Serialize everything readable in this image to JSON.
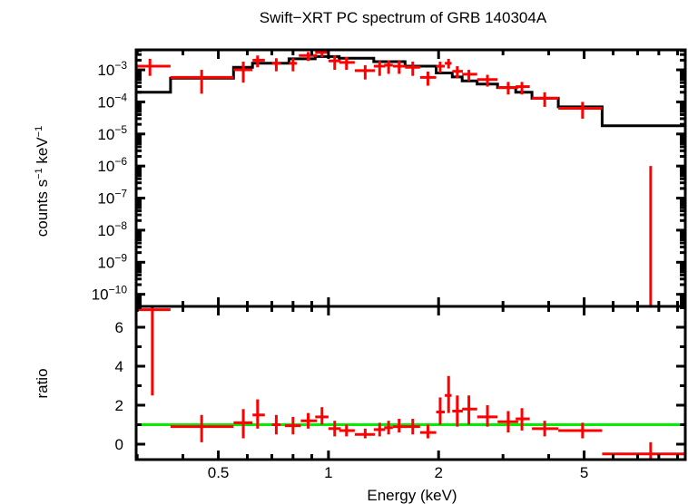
{
  "chart_data": [
    {
      "panel": "spectrum",
      "type": "scatter",
      "title": "Swift−XRT PC spectrum of GRB 140304A",
      "xlabel": "",
      "ylabel": "counts s⁻¹ keV⁻¹",
      "xscale": "log",
      "yscale": "log",
      "xlim": [
        0.298,
        9.45
      ],
      "ylim": [
        4.2e-11,
        0.0042
      ],
      "ytick_exponents": [
        -3,
        -4,
        -5,
        -6,
        -7,
        -8,
        -9,
        -10
      ],
      "colors": {
        "data": "#ff0000",
        "model": "#000000"
      },
      "series": [
        {
          "name": "data",
          "points": [
            {
              "x": 0.325,
              "xlo": 0.298,
              "xhi": 0.37,
              "y": 0.0013,
              "ylo": 0.00065,
              "yhi": 0.0022
            },
            {
              "x": 0.45,
              "xlo": 0.37,
              "xhi": 0.55,
              "y": 0.00058,
              "ylo": 0.00018,
              "yhi": 0.001
            },
            {
              "x": 0.585,
              "xlo": 0.55,
              "xhi": 0.62,
              "y": 0.001,
              "ylo": 0.0004,
              "yhi": 0.0018
            },
            {
              "x": 0.64,
              "xlo": 0.62,
              "xhi": 0.67,
              "y": 0.002,
              "ylo": 0.0012,
              "yhi": 0.0028
            },
            {
              "x": 0.72,
              "xlo": 0.7,
              "xhi": 0.74,
              "y": 0.0016,
              "ylo": 0.0009,
              "yhi": 0.0023
            },
            {
              "x": 0.8,
              "xlo": 0.78,
              "xhi": 0.82,
              "y": 0.0016,
              "ylo": 0.0009,
              "yhi": 0.0023
            },
            {
              "x": 0.88,
              "xlo": 0.83,
              "xhi": 0.93,
              "y": 0.0028,
              "ylo": 0.0019,
              "yhi": 0.0036
            },
            {
              "x": 0.96,
              "xlo": 0.92,
              "xhi": 1.0,
              "y": 0.0035,
              "ylo": 0.0025,
              "yhi": 0.0042
            },
            {
              "x": 1.04,
              "xlo": 1.0,
              "xhi": 1.08,
              "y": 0.0019,
              "ylo": 0.001,
              "yhi": 0.0028
            },
            {
              "x": 1.12,
              "xlo": 1.07,
              "xhi": 1.18,
              "y": 0.0017,
              "ylo": 0.001,
              "yhi": 0.0025
            },
            {
              "x": 1.26,
              "xlo": 1.18,
              "xhi": 1.34,
              "y": 0.00095,
              "ylo": 0.0005,
              "yhi": 0.0014
            },
            {
              "x": 1.38,
              "xlo": 1.33,
              "xhi": 1.43,
              "y": 0.0013,
              "ylo": 0.00065,
              "yhi": 0.0019
            },
            {
              "x": 1.46,
              "xlo": 1.42,
              "xhi": 1.5,
              "y": 0.0014,
              "ylo": 0.00075,
              "yhi": 0.002
            },
            {
              "x": 1.56,
              "xlo": 1.5,
              "xhi": 1.63,
              "y": 0.0013,
              "ylo": 0.00075,
              "yhi": 0.0019
            },
            {
              "x": 1.7,
              "xlo": 1.62,
              "xhi": 1.78,
              "y": 0.0012,
              "ylo": 0.00065,
              "yhi": 0.0018
            },
            {
              "x": 1.87,
              "xlo": 1.78,
              "xhi": 1.97,
              "y": 0.00058,
              "ylo": 0.00032,
              "yhi": 0.00088
            },
            {
              "x": 2.02,
              "xlo": 1.97,
              "xhi": 2.08,
              "y": 0.0013,
              "ylo": 0.0008,
              "yhi": 0.0018
            },
            {
              "x": 2.13,
              "xlo": 2.08,
              "xhi": 2.17,
              "y": 0.0016,
              "ylo": 0.0011,
              "yhi": 0.0022
            },
            {
              "x": 2.25,
              "xlo": 2.18,
              "xhi": 2.33,
              "y": 0.0009,
              "ylo": 0.00055,
              "yhi": 0.0013
            },
            {
              "x": 2.42,
              "xlo": 2.32,
              "xhi": 2.55,
              "y": 0.00073,
              "ylo": 0.00045,
              "yhi": 0.001
            },
            {
              "x": 2.72,
              "xlo": 2.55,
              "xhi": 2.9,
              "y": 0.0005,
              "ylo": 0.0003,
              "yhi": 0.0007
            },
            {
              "x": 3.1,
              "xlo": 2.9,
              "xhi": 3.3,
              "y": 0.00028,
              "ylo": 0.00017,
              "yhi": 0.00042
            },
            {
              "x": 3.38,
              "xlo": 3.25,
              "xhi": 3.55,
              "y": 0.0003,
              "ylo": 0.00017,
              "yhi": 0.00042
            },
            {
              "x": 3.9,
              "xlo": 3.6,
              "xhi": 4.25,
              "y": 0.00013,
              "ylo": 7e-05,
              "yhi": 0.0002
            },
            {
              "x": 4.95,
              "xlo": 4.25,
              "xhi": 5.6,
              "y": 6.3e-05,
              "ylo": 3e-05,
              "yhi": 0.0001
            },
            {
              "x": 7.6,
              "xlo": null,
              "xhi": null,
              "y": null,
              "ylo": 4.2e-11,
              "yhi": 1e-06
            }
          ]
        },
        {
          "name": "model",
          "step_edges": [
            0.298,
            0.37,
            0.55,
            0.62,
            0.78,
            0.92,
            1.07,
            1.33,
            1.62,
            1.97,
            2.18,
            2.32,
            2.55,
            2.9,
            3.25,
            3.6,
            4.25,
            5.6,
            9.45
          ],
          "step_values": [
            0.0002,
            0.00055,
            0.0012,
            0.0016,
            0.0022,
            0.0026,
            0.0023,
            0.0018,
            0.0013,
            0.0008,
            0.0006,
            0.00045,
            0.00036,
            0.00028,
            0.0002,
            0.00013,
            7e-05,
            1.8e-05
          ]
        }
      ]
    },
    {
      "panel": "ratio",
      "type": "scatter",
      "xlabel": "Energy (keV)",
      "ylabel": "ratio",
      "xscale": "log",
      "xlim": [
        0.298,
        9.45
      ],
      "ylim": [
        -0.79,
        7.07
      ],
      "xticks": [
        {
          "value": 0.5,
          "label": "0.5"
        },
        {
          "value": 1,
          "label": "1"
        },
        {
          "value": 2,
          "label": "2"
        },
        {
          "value": 5,
          "label": "5"
        }
      ],
      "yticks": [
        {
          "value": 0,
          "label": "0"
        },
        {
          "value": 2,
          "label": "2"
        },
        {
          "value": 4,
          "label": "4"
        },
        {
          "value": 6,
          "label": "6"
        }
      ],
      "reference_line": {
        "y": 1,
        "color": "#00ee00"
      },
      "colors": {
        "data": "#ff0000"
      },
      "points": [
        {
          "x": 0.33,
          "xlo": 0.298,
          "xhi": 0.37,
          "y": 6.9,
          "ylo": 2.5,
          "yhi": 7.07
        },
        {
          "x": 0.45,
          "xlo": 0.37,
          "xhi": 0.55,
          "y": 0.9,
          "ylo": 0.1,
          "yhi": 1.5
        },
        {
          "x": 0.585,
          "xlo": 0.55,
          "xhi": 0.62,
          "y": 1.1,
          "ylo": 0.3,
          "yhi": 1.8
        },
        {
          "x": 0.64,
          "xlo": 0.62,
          "xhi": 0.67,
          "y": 1.5,
          "ylo": 0.8,
          "yhi": 2.3
        },
        {
          "x": 0.72,
          "xlo": 0.7,
          "xhi": 0.74,
          "y": 1.0,
          "ylo": 0.5,
          "yhi": 1.5
        },
        {
          "x": 0.8,
          "xlo": 0.76,
          "xhi": 0.84,
          "y": 0.95,
          "ylo": 0.5,
          "yhi": 1.4
        },
        {
          "x": 0.88,
          "xlo": 0.84,
          "xhi": 0.93,
          "y": 1.2,
          "ylo": 0.8,
          "yhi": 1.6
        },
        {
          "x": 0.96,
          "xlo": 0.92,
          "xhi": 1.0,
          "y": 1.4,
          "ylo": 1.0,
          "yhi": 1.9
        },
        {
          "x": 1.04,
          "xlo": 1.0,
          "xhi": 1.08,
          "y": 0.8,
          "ylo": 0.4,
          "yhi": 1.2
        },
        {
          "x": 1.12,
          "xlo": 1.07,
          "xhi": 1.18,
          "y": 0.7,
          "ylo": 0.4,
          "yhi": 1.0
        },
        {
          "x": 1.26,
          "xlo": 1.18,
          "xhi": 1.34,
          "y": 0.5,
          "ylo": 0.3,
          "yhi": 0.8
        },
        {
          "x": 1.38,
          "xlo": 1.33,
          "xhi": 1.43,
          "y": 0.75,
          "ylo": 0.4,
          "yhi": 1.1
        },
        {
          "x": 1.46,
          "xlo": 1.42,
          "xhi": 1.5,
          "y": 0.85,
          "ylo": 0.5,
          "yhi": 1.2
        },
        {
          "x": 1.56,
          "xlo": 1.5,
          "xhi": 1.63,
          "y": 0.9,
          "ylo": 0.6,
          "yhi": 1.3
        },
        {
          "x": 1.7,
          "xlo": 1.62,
          "xhi": 1.78,
          "y": 0.9,
          "ylo": 0.5,
          "yhi": 1.3
        },
        {
          "x": 1.87,
          "xlo": 1.78,
          "xhi": 1.97,
          "y": 0.6,
          "ylo": 0.3,
          "yhi": 1.0
        },
        {
          "x": 2.02,
          "xlo": 1.97,
          "xhi": 2.08,
          "y": 1.65,
          "ylo": 1.0,
          "yhi": 2.4
        },
        {
          "x": 2.13,
          "xlo": 2.08,
          "xhi": 2.17,
          "y": 2.5,
          "ylo": 1.6,
          "yhi": 3.5
        },
        {
          "x": 2.25,
          "xlo": 2.18,
          "xhi": 2.33,
          "y": 1.7,
          "ylo": 0.9,
          "yhi": 2.5
        },
        {
          "x": 2.42,
          "xlo": 2.32,
          "xhi": 2.55,
          "y": 1.8,
          "ylo": 1.0,
          "yhi": 2.5
        },
        {
          "x": 2.72,
          "xlo": 2.55,
          "xhi": 2.9,
          "y": 1.4,
          "ylo": 0.9,
          "yhi": 2.0
        },
        {
          "x": 3.1,
          "xlo": 2.9,
          "xhi": 3.3,
          "y": 1.15,
          "ylo": 0.6,
          "yhi": 1.7
        },
        {
          "x": 3.38,
          "xlo": 3.25,
          "xhi": 3.55,
          "y": 1.3,
          "ylo": 0.7,
          "yhi": 1.85
        },
        {
          "x": 3.9,
          "xlo": 3.6,
          "xhi": 4.25,
          "y": 0.8,
          "ylo": 0.4,
          "yhi": 1.2
        },
        {
          "x": 4.95,
          "xlo": 4.25,
          "xhi": 5.6,
          "y": 0.7,
          "ylo": 0.3,
          "yhi": 1.1
        },
        {
          "x": 7.6,
          "xlo": 5.6,
          "xhi": 9.45,
          "y": -0.5,
          "ylo": -0.79,
          "yhi": 0.1
        }
      ]
    }
  ]
}
